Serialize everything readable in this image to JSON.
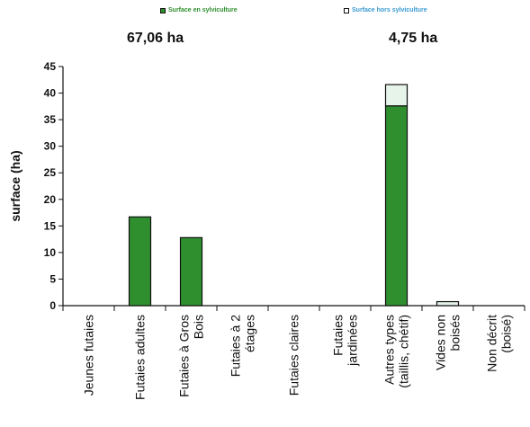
{
  "legend": {
    "in": {
      "label": "Surface en sylviculture",
      "color": "#2f8f2f"
    },
    "out": {
      "label": "Surface hors sylviculture",
      "color": "#e6f4ea"
    }
  },
  "totals": {
    "in": "67,06 ha",
    "out": "4,75 ha"
  },
  "chart_data": {
    "type": "bar",
    "stacked": true,
    "title": "",
    "xlabel": "",
    "ylabel": "surface (ha)",
    "ylim": [
      0,
      45
    ],
    "yticks": [
      0,
      5,
      10,
      15,
      20,
      25,
      30,
      35,
      40,
      45
    ],
    "grid": false,
    "categories": [
      "Jeunes futaies",
      "Futaies adultes",
      "Futaies à Gros Bois",
      "Futaies à 2 étages",
      "Futaies claires",
      "Futaies jardinées",
      "Autres types (taillis, chétif)",
      "Vides non boisés",
      "Non décrit (boisé)"
    ],
    "category_lines": [
      [
        "Jeunes futaies"
      ],
      [
        "Futaies adultes"
      ],
      [
        "Futaies à Gros",
        "Bois"
      ],
      [
        "Futaies à 2",
        "étages"
      ],
      [
        "Futaies claires"
      ],
      [
        "Futaies",
        "jardinées"
      ],
      [
        "Autres types",
        "(taillis, chétif)"
      ],
      [
        "Vides non",
        "boisés"
      ],
      [
        "Non décrit",
        "(boisé)"
      ]
    ],
    "series": [
      {
        "name": "Surface en sylviculture",
        "color": "#2f8f2f",
        "values": [
          0,
          16.7,
          12.8,
          0,
          0,
          0,
          37.6,
          0,
          0
        ]
      },
      {
        "name": "Surface hors sylviculture",
        "color": "#e6f4ea",
        "values": [
          0,
          0,
          0,
          0,
          0,
          0,
          4.0,
          0.75,
          0
        ]
      }
    ]
  }
}
